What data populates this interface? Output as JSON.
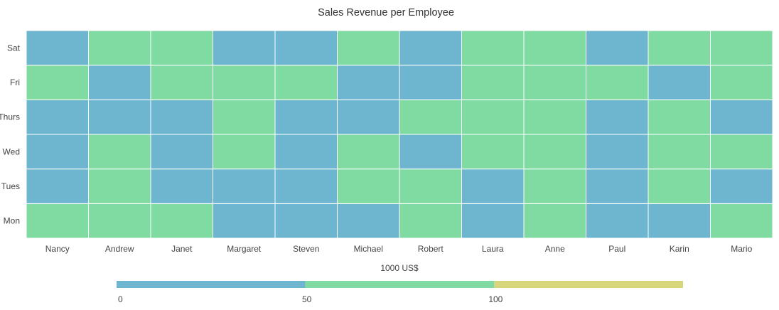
{
  "chart_data": {
    "type": "heatmap",
    "title": "Sales Revenue per Employee",
    "x_categories": [
      "Nancy",
      "Andrew",
      "Janet",
      "Margaret",
      "Steven",
      "Michael",
      "Robert",
      "Laura",
      "Anne",
      "Paul",
      "Karin",
      "Mario"
    ],
    "y_categories": [
      "Mon",
      "Tues",
      "Wed",
      "Thurs",
      "Fri",
      "Sat"
    ],
    "values": [
      [
        60,
        40,
        40,
        40,
        60,
        40
      ],
      [
        60,
        60,
        60,
        40,
        40,
        60
      ],
      [
        60,
        40,
        40,
        40,
        60,
        60
      ],
      [
        40,
        40,
        60,
        60,
        60,
        40
      ],
      [
        40,
        40,
        40,
        40,
        60,
        40
      ],
      [
        40,
        60,
        60,
        40,
        40,
        60
      ],
      [
        60,
        60,
        40,
        60,
        40,
        40
      ],
      [
        40,
        40,
        60,
        60,
        60,
        60
      ],
      [
        60,
        60,
        60,
        60,
        60,
        60
      ],
      [
        40,
        40,
        40,
        40,
        60,
        40
      ],
      [
        40,
        60,
        60,
        60,
        40,
        60
      ],
      [
        60,
        40,
        60,
        40,
        60,
        60
      ]
    ],
    "legend": {
      "title": "1000 US$",
      "position": "bottom",
      "ranges": [
        {
          "from": 0,
          "to": 50,
          "color": "#6eb5d0"
        },
        {
          "from": 50,
          "to": 100,
          "color": "#7fdba1"
        },
        {
          "from": 100,
          "to": 150,
          "color": "#d8d67a"
        }
      ],
      "labels": [
        "0",
        "50",
        "100"
      ]
    },
    "colors": {
      "cell_border": "#ffffff",
      "text": "#444444",
      "title": "#333333"
    }
  }
}
